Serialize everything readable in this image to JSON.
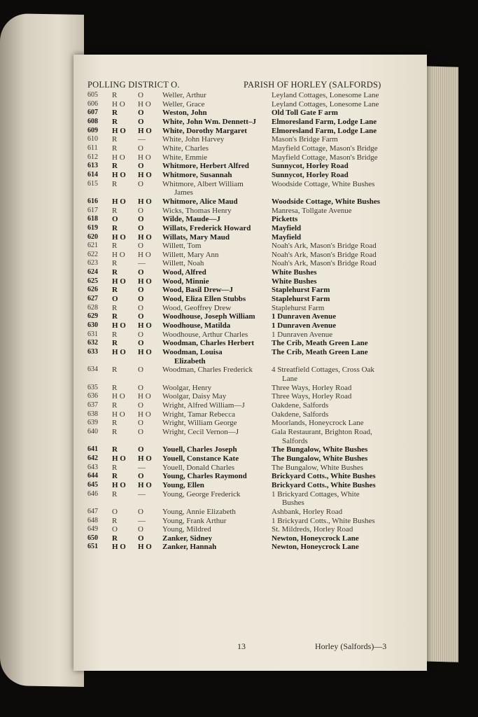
{
  "header": {
    "left": "POLLING DISTRICT O.",
    "right": "PARISH OF HORLEY (SALFORDS)"
  },
  "entries": [
    {
      "no": "605",
      "c1": "R",
      "c2": "O",
      "name": "Weller, Arthur",
      "address": "Leyland Cottages, Lonesome Lane",
      "bold": false
    },
    {
      "no": "606",
      "c1": "H O",
      "c2": "H O",
      "name": "Weller, Grace",
      "address": "Leyland Cottages, Lonesome Lane",
      "bold": false
    },
    {
      "no": "607",
      "c1": "R",
      "c2": "O",
      "name": "Weston, John",
      "address": "Old Toll Gate F arm",
      "bold": true
    },
    {
      "no": "608",
      "c1": "R",
      "c2": "O",
      "name": "White, John Wm. Dennett–J",
      "address": "Elmoresland Farm, Lodge Lane",
      "bold": true
    },
    {
      "no": "609",
      "c1": "H O",
      "c2": "H O",
      "name": "White, Dorothy Margaret",
      "address": "Elmoresland Farm, Lodge Lane",
      "bold": true
    },
    {
      "no": "610",
      "c1": "R",
      "c2": "—",
      "name": "White, John Harvey",
      "address": "Mason's Bridge Farm",
      "bold": false
    },
    {
      "no": "611",
      "c1": "R",
      "c2": "O",
      "name": "White, Charles",
      "address": "Mayfield Cottage, Mason's Bridge",
      "bold": false
    },
    {
      "no": "612",
      "c1": "H O",
      "c2": "H O",
      "name": "White, Emmie",
      "address": "Mayfield Cottage, Mason's Bridge",
      "bold": false
    },
    {
      "no": "613",
      "c1": "R",
      "c2": "O",
      "name": "Whitmore, Herbert Alfred",
      "address": "Sunnycot, Horley Road",
      "bold": true
    },
    {
      "no": "614",
      "c1": "H O",
      "c2": "H O",
      "name": "Whitmore, Susannah",
      "address": "Sunnycot, Horley Road",
      "bold": true
    },
    {
      "no": "615",
      "c1": "R",
      "c2": "O",
      "name": "Whitmore, Albert William",
      "name_cont": "James",
      "address": "Woodside Cottage, White Bushes",
      "bold": false
    },
    {
      "no": "616",
      "c1": "H O",
      "c2": "H O",
      "name": "Whitmore, Alice Maud",
      "address": "Woodside Cottage, White Bushes",
      "bold": true
    },
    {
      "no": "617",
      "c1": "R",
      "c2": "O",
      "name": "Wicks, Thomas Henry",
      "address": "Manresa, Tollgate Avenue",
      "bold": false
    },
    {
      "no": "618",
      "c1": "O",
      "c2": "O",
      "name": "Wilde, Maude—J",
      "address": "Picketts",
      "bold": true
    },
    {
      "no": "619",
      "c1": "R",
      "c2": "O",
      "name": "Willats, Frederick Howard",
      "address": "Mayfield",
      "bold": true
    },
    {
      "no": "620",
      "c1": "H O",
      "c2": "H O",
      "name": "Willats, Mary Maud",
      "address": "Mayfield",
      "bold": true
    },
    {
      "no": "621",
      "c1": "R",
      "c2": "O",
      "name": "Willett, Tom",
      "address": "Noah's Ark, Mason's Bridge Road",
      "bold": false
    },
    {
      "no": "622",
      "c1": "H O",
      "c2": "H O",
      "name": "Willett, Mary Ann",
      "address": "Noah's Ark, Mason's Bridge Road",
      "bold": false
    },
    {
      "no": "623",
      "c1": "R",
      "c2": "—",
      "name": "Willett, Noah",
      "address": "Noah's Ark, Mason's Bridge Road",
      "bold": false
    },
    {
      "no": "624",
      "c1": "R",
      "c2": "O",
      "name": "Wood, Alfred",
      "address": "White Bushes",
      "bold": true
    },
    {
      "no": "625",
      "c1": "H O",
      "c2": "H O",
      "name": "Wood, Minnie",
      "address": "White Bushes",
      "bold": true
    },
    {
      "no": "626",
      "c1": "R",
      "c2": "O",
      "name": "Wood, Basil Drew—J",
      "address": "Staplehurst Farm",
      "bold": true
    },
    {
      "no": "627",
      "c1": "O",
      "c2": "O",
      "name": "Wood, Eliza Ellen Stubbs",
      "address": "Staplehurst Farm",
      "bold": true
    },
    {
      "no": "628",
      "c1": "R",
      "c2": "O",
      "name": "Wood, Geoffrey Drew",
      "address": "Staplehurst Farm",
      "bold": false
    },
    {
      "no": "629",
      "c1": "R",
      "c2": "O",
      "name": "Woodhouse, Joseph William",
      "address": "1 Dunraven Avenue",
      "bold": true
    },
    {
      "no": "630",
      "c1": "H O",
      "c2": "H O",
      "name": "Woodhouse, Matilda",
      "address": "1 Dunraven Avenue",
      "bold": true
    },
    {
      "no": "631",
      "c1": "R",
      "c2": "O",
      "name": "Woodhouse, Arthur Charles",
      "address": "1 Dunraven Avenue",
      "bold": false
    },
    {
      "no": "632",
      "c1": "R",
      "c2": "O",
      "name": "Woodman, Charles Herbert",
      "address": "The Crib, Meath Green Lane",
      "bold": true
    },
    {
      "no": "633",
      "c1": "H O",
      "c2": "H O",
      "name": "Woodman, Louisa",
      "name_cont": "Elizabeth",
      "address": "The Crib, Meath Green Lane",
      "bold": true
    },
    {
      "no": "634",
      "c1": "R",
      "c2": "O",
      "name": "Woodman, Charles Frederick",
      "address": "4 Streatfield Cottages, Cross Oak",
      "address_cont": "Lane",
      "bold": false
    },
    {
      "no": "635",
      "c1": "R",
      "c2": "O",
      "name": "Woolgar, Henry",
      "address": "Three Ways, Horley Road",
      "bold": false
    },
    {
      "no": "636",
      "c1": "H O",
      "c2": "H O",
      "name": "Woolgar, Daisy May",
      "address": "Three Ways, Horley Road",
      "bold": false
    },
    {
      "no": "637",
      "c1": "R",
      "c2": "O",
      "name": "Wright, Alfred William—J",
      "address": "Oakdene, Salfords",
      "bold": false
    },
    {
      "no": "638",
      "c1": "H O",
      "c2": "H O",
      "name": "Wright, Tamar Rebecca",
      "address": "Oakdene, Salfords",
      "bold": false
    },
    {
      "no": "639",
      "c1": "R",
      "c2": "O",
      "name": "Wright, William George",
      "address": "Moorlands, Honeycrock Lane",
      "bold": false
    },
    {
      "no": "640",
      "c1": "R",
      "c2": "O",
      "name": "Wright, Cecil Vernon—J",
      "address": "Gala Restaurant, Brighton Road,",
      "address_cont": "Salfords",
      "bold": false
    },
    {
      "no": "641",
      "c1": "R",
      "c2": "O",
      "name": "Youell, Charles Joseph",
      "address": "The Bungalow, White Bushes",
      "bold": true
    },
    {
      "no": "642",
      "c1": "H O",
      "c2": "H O",
      "name": "Youell, Constance Kate",
      "address": "The Bungalow, White Bushes",
      "bold": true
    },
    {
      "no": "643",
      "c1": "R",
      "c2": "—",
      "name": "Youell, Donald Charles",
      "address": "The Bungalow, White Bushes",
      "bold": false
    },
    {
      "no": "644",
      "c1": "R",
      "c2": "O",
      "name": "Young, Charles Raymond",
      "address": "Brickyard Cotts., White Bushes",
      "bold": true
    },
    {
      "no": "645",
      "c1": "H O",
      "c2": "H O",
      "name": "Young, Ellen",
      "address": "Brickyard Cotts., White Bushes",
      "bold": true
    },
    {
      "no": "646",
      "c1": "R",
      "c2": "—",
      "name": "Young, George Frederick",
      "address": "1 Brickyard Cottages, White",
      "address_cont": "Bushes",
      "bold": false
    },
    {
      "no": "647",
      "c1": "O",
      "c2": "O",
      "name": "Young, Annie Elizabeth",
      "address": "Ashbank, Horley Road",
      "bold": false
    },
    {
      "no": "648",
      "c1": "R",
      "c2": "—",
      "name": "Young, Frank Arthur",
      "address": "1 Brickyard Cotts., White Bushes",
      "bold": false
    },
    {
      "no": "649",
      "c1": "O",
      "c2": "O",
      "name": "Young, Mildred",
      "address": "St. Mildreds, Horley Road",
      "bold": false
    },
    {
      "no": "650",
      "c1": "R",
      "c2": "O",
      "name": "Zanker, Sidney",
      "address": "Newton, Honeycrock Lane",
      "bold": true
    },
    {
      "no": "651",
      "c1": "H O",
      "c2": "H O",
      "name": "Zanker, Hannah",
      "address": "Newton, Honeycrock Lane",
      "bold": true
    }
  ],
  "footer": {
    "page_number": "13",
    "section": "Horley (Salfords)—3"
  }
}
